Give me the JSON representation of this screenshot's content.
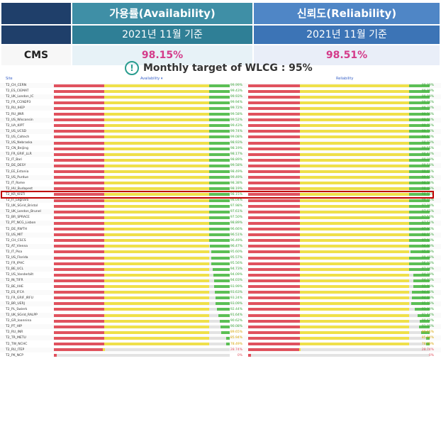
{
  "header": {
    "availability_title": "가용률(Availability)",
    "reliability_title": "신뢰도(Reliability)",
    "availability_period": "2021년 11월 기준",
    "reliability_period": "2021년 11월 기준",
    "cms_label": "CMS",
    "cms_availability": "98.15%",
    "cms_reliability": "98.51%"
  },
  "target": {
    "text": "Monthly target of WLCG : 95%",
    "icon": "exclamation-circle-icon"
  },
  "table": {
    "col_site": "Site",
    "col_availability": "Availability ▾",
    "col_reliability": "Reliability",
    "highlight_row": "T2_KR_KISTI",
    "colors": {
      "red": "#e0525e",
      "yellow": "#efe04a",
      "green": "#5cbf55",
      "grey": "#e3e3e3",
      "highlight": "#c00000"
    },
    "rows": [
      {
        "site": "T2_CH_CERN",
        "avail": "99.99%",
        "rel": "99.99%",
        "a": 99.99,
        "r": 99.99
      },
      {
        "site": "T2_ES_CIEMAT",
        "avail": "99.43%",
        "rel": "99.99%",
        "a": 99.43,
        "r": 99.99
      },
      {
        "site": "T2_UK_London_IC",
        "avail": "99.93%",
        "rel": "99.99%",
        "a": 99.93,
        "r": 99.99
      },
      {
        "site": "T2_FR_CCIN2P3",
        "avail": "99.94%",
        "rel": "99.94%",
        "a": 99.94,
        "r": 99.94
      },
      {
        "site": "T2_RU_IHEP",
        "avail": "99.72%",
        "rel": "99.72%",
        "a": 99.72,
        "r": 99.72
      },
      {
        "site": "T2_RU_JINR",
        "avail": "99.58%",
        "rel": "99.58%",
        "a": 99.58,
        "r": 99.58
      },
      {
        "site": "T2_US_Wisconsin",
        "avail": "99.52%",
        "rel": "99.52%",
        "a": 99.52,
        "r": 99.52
      },
      {
        "site": "T2_UA_KIPT",
        "avail": "99.43%",
        "rel": "99.72%",
        "a": 99.43,
        "r": 99.72
      },
      {
        "site": "T2_US_UCSD",
        "avail": "99.74%",
        "rel": "99.74%",
        "a": 99.74,
        "r": 99.74
      },
      {
        "site": "T2_US_Caltech",
        "avail": "99.08%",
        "rel": "99.10%",
        "a": 99.08,
        "r": 99.1
      },
      {
        "site": "T2_US_Nebraska",
        "avail": "98.93%",
        "rel": "98.93%",
        "a": 98.93,
        "r": 98.93
      },
      {
        "site": "T2_CN_Beijing",
        "avail": "98.19%",
        "rel": "99.55%",
        "a": 98.19,
        "r": 99.55
      },
      {
        "site": "T2_FR_GRIF_LLR",
        "avail": "98.17%",
        "rel": "98.62%",
        "a": 98.17,
        "r": 98.62
      },
      {
        "site": "T2_IT_Bari",
        "avail": "98.89%",
        "rel": "99.09%",
        "a": 98.89,
        "r": 99.09
      },
      {
        "site": "T2_DE_DESY",
        "avail": "99.58%",
        "rel": "99.58%",
        "a": 99.58,
        "r": 99.58
      },
      {
        "site": "T2_EE_Estonia",
        "avail": "98.49%",
        "rel": "99.61%",
        "a": 98.49,
        "r": 99.61
      },
      {
        "site": "T2_US_Purdue",
        "avail": "99.49%",
        "rel": "99.15%",
        "a": 99.49,
        "r": 99.15
      },
      {
        "site": "T2_IT_Rome",
        "avail": "98.38%",
        "rel": "98.38%",
        "a": 98.38,
        "r": 98.38
      },
      {
        "site": "T2_HU_Budapest",
        "avail": "98.19%",
        "rel": "98.48%",
        "a": 98.19,
        "r": 98.48
      },
      {
        "site": "T2_KR_KISTI",
        "avail": "98.15%",
        "rel": "98.51%",
        "a": 98.15,
        "r": 98.51
      },
      {
        "site": "T2_IT_Legnaro",
        "avail": "98.04%",
        "rel": "98.15%",
        "a": 98.04,
        "r": 98.15
      },
      {
        "site": "T2_UK_SGrid_Bristol",
        "avail": "97.98%",
        "rel": "97.98%",
        "a": 97.98,
        "r": 97.98
      },
      {
        "site": "T2_UK_London_Brunel",
        "avail": "97.61%",
        "rel": "97.61%",
        "a": 97.61,
        "r": 97.61
      },
      {
        "site": "T2_BR_SPRACE",
        "avail": "97.50%",
        "rel": "97.50%",
        "a": 97.5,
        "r": 97.5
      },
      {
        "site": "T2_PT_NCG_Lisbon",
        "avail": "98.89%",
        "rel": "97.51%",
        "a": 98.89,
        "r": 97.51
      },
      {
        "site": "T2_DE_RWTH",
        "avail": "96.66%",
        "rel": "97.96%",
        "a": 96.66,
        "r": 97.96
      },
      {
        "site": "T2_US_MIT",
        "avail": "96.51%",
        "rel": "98.15%",
        "a": 96.51,
        "r": 98.15
      },
      {
        "site": "T2_CH_CSCS",
        "avail": "96.49%",
        "rel": "97.50%",
        "a": 96.49,
        "r": 97.5
      },
      {
        "site": "T2_AT_Vienna",
        "avail": "96.47%",
        "rel": "96.99%",
        "a": 96.47,
        "r": 96.99
      },
      {
        "site": "T2_IT_Pisa",
        "avail": "95.60%",
        "rel": "95.69%",
        "a": 95.6,
        "r": 95.69
      },
      {
        "site": "T2_US_Florida",
        "avail": "95.57%",
        "rel": "99.48%",
        "a": 95.57,
        "r": 99.48
      },
      {
        "site": "T2_FR_IPHC",
        "avail": "95.56%",
        "rel": "96.93%",
        "a": 95.56,
        "r": 96.93
      },
      {
        "site": "T2_BE_UCL",
        "avail": "94.73%",
        "rel": "97.04%",
        "a": 94.73,
        "r": 97.04
      },
      {
        "site": "T2_US_Vanderbilt",
        "avail": "94.09%",
        "rel": "94.09%",
        "a": 94.09,
        "r": 94.09
      },
      {
        "site": "T2_IN_TIFR",
        "avail": "94.03%",
        "rel": "94.03%",
        "a": 94.03,
        "r": 94.03
      },
      {
        "site": "T2_BE_IIHE",
        "avail": "93.99%",
        "rel": "93.99%",
        "a": 93.99,
        "r": 93.99
      },
      {
        "site": "T2_ES_IFCA",
        "avail": "93.63%",
        "rel": "94.63%",
        "a": 93.63,
        "r": 94.63
      },
      {
        "site": "T2_FR_GRIF_IRFU",
        "avail": "93.24%",
        "rel": "94.88%",
        "a": 93.24,
        "r": 94.88
      },
      {
        "site": "T2_BR_UERJ",
        "avail": "93.09%",
        "rel": "95.03%",
        "a": 93.09,
        "r": 95.03
      },
      {
        "site": "T2_PL_Swierk",
        "avail": "92.44%",
        "rel": "93.09%",
        "a": 92.44,
        "r": 93.09
      },
      {
        "site": "T2_UK_SGrid_RALPP",
        "avail": "91.64%",
        "rel": "91.64%",
        "a": 91.64,
        "r": 91.64
      },
      {
        "site": "T2_GR_Ioannina",
        "avail": "90.62%",
        "rel": "90.62%",
        "a": 90.62,
        "r": 90.62
      },
      {
        "site": "T2_PT_HIP",
        "avail": "90.08%",
        "rel": "91.00%",
        "a": 90.08,
        "r": 91.0
      },
      {
        "site": "T2_RU_INR",
        "avail": "89.65%",
        "rel": "89.65%",
        "a": 89.65,
        "r": 89.65
      },
      {
        "site": "T2_TR_METU",
        "avail": "85.94%",
        "rel": "85.94%",
        "a": 85.94,
        "r": 85.94
      },
      {
        "site": "T2_TW_NCHC",
        "avail": "78.49%",
        "rel": "78.49%",
        "a": 78.49,
        "r": 78.49
      },
      {
        "site": "T2_RU_ITEP",
        "avail": "28.74%",
        "rel": "28.74%",
        "a": 28.74,
        "r": 28.74
      },
      {
        "site": "T2_PK_NCP",
        "avail": "0%",
        "rel": "0%",
        "a": 0,
        "r": 0
      }
    ]
  }
}
